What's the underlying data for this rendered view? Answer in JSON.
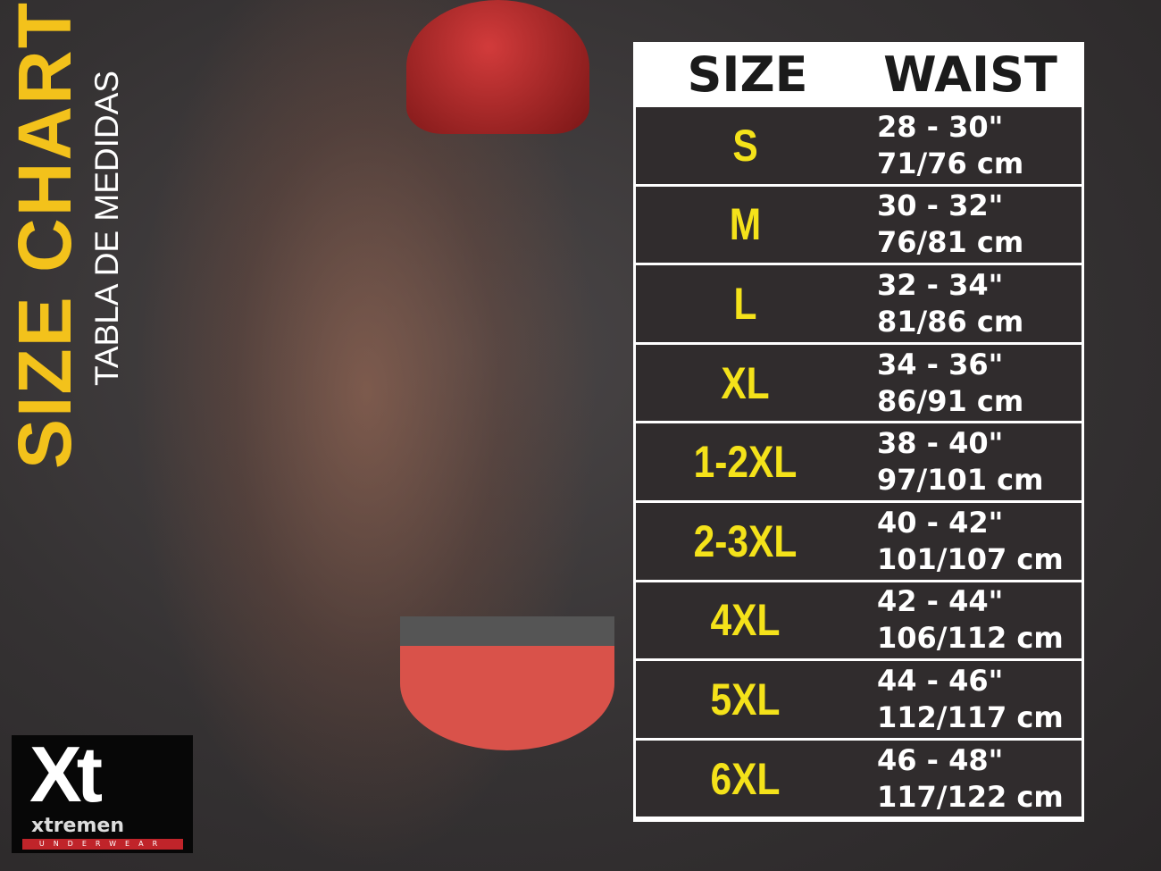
{
  "title": "SIZE CHART",
  "subtitle": "TABLA DE MEDIDAS",
  "colors": {
    "title": "#f3c21b",
    "size_label": "#f4e21a",
    "row_bg": "#302c2d",
    "border": "#ffffff"
  },
  "table": {
    "headers": [
      "SIZE",
      "WAIST"
    ],
    "rows": [
      {
        "size": "S",
        "inches": "28 - 30\"",
        "cm": "71/76 cm"
      },
      {
        "size": "M",
        "inches": "30 - 32\"",
        "cm": "76/81 cm"
      },
      {
        "size": "L",
        "inches": "32 - 34\"",
        "cm": "81/86 cm"
      },
      {
        "size": "XL",
        "inches": "34 - 36\"",
        "cm": "86/91 cm"
      },
      {
        "size": "1-2XL",
        "inches": "38 - 40\"",
        "cm": "97/101 cm"
      },
      {
        "size": "2-3XL",
        "inches": "40 - 42\"",
        "cm": "101/107 cm"
      },
      {
        "size": "4XL",
        "inches": "42 - 44\"",
        "cm": "106/112 cm"
      },
      {
        "size": "5XL",
        "inches": "44 - 46\"",
        "cm": "112/117 cm"
      },
      {
        "size": "6XL",
        "inches": "46 - 48\"",
        "cm": "117/122 cm"
      }
    ]
  },
  "logo": {
    "mark": "Xt",
    "wordmark": "xtremen",
    "tagline": "UNDERWEAR"
  }
}
